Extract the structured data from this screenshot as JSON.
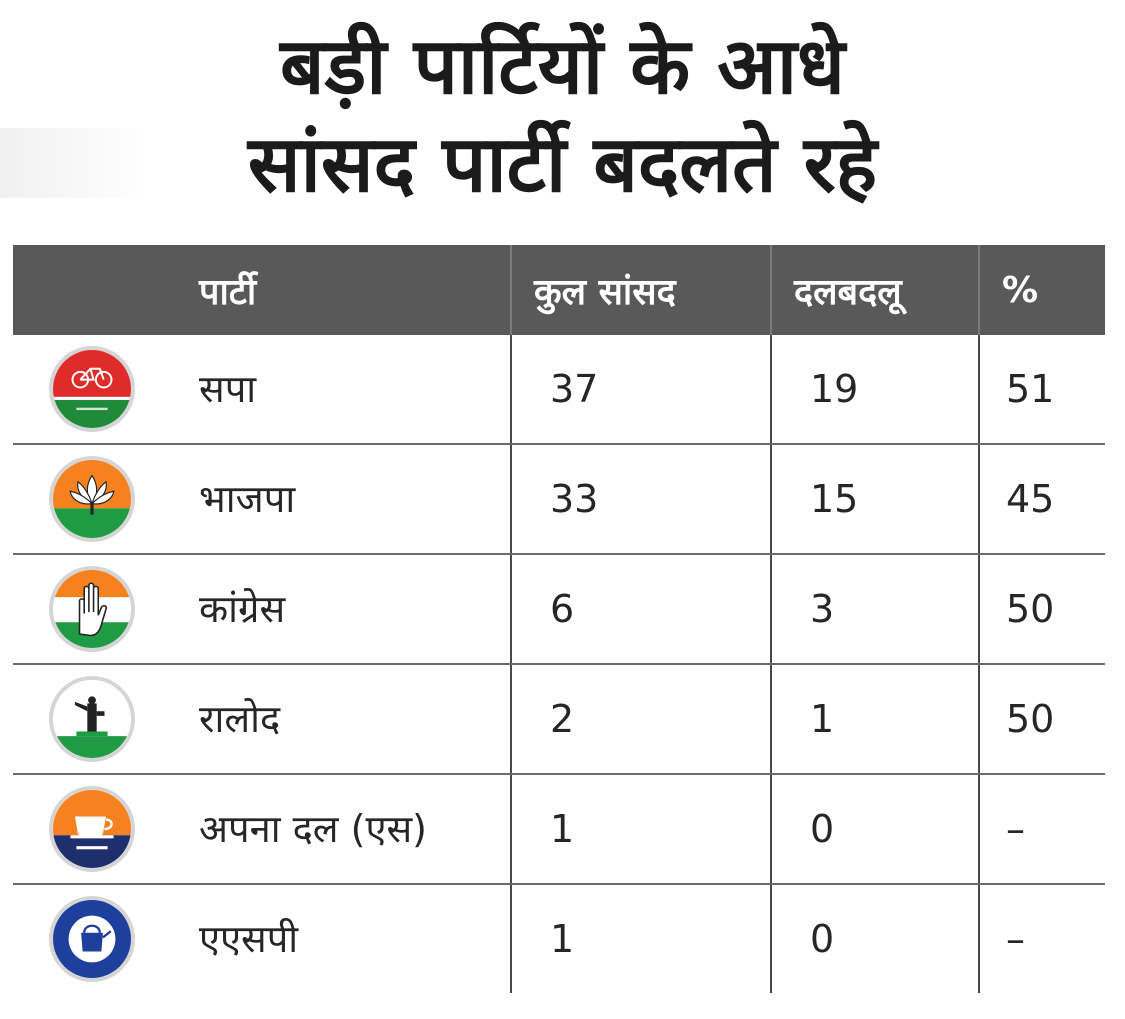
{
  "title": {
    "line1": "बड़ी पार्टियों के आधे",
    "line2": "सांसद पार्टी बदलते रहे"
  },
  "chart_data": {
    "type": "table",
    "headers": [
      "पार्टी",
      "कुल सांसद",
      "दलबदलू",
      "%"
    ],
    "rows": [
      {
        "party": "सपा",
        "total": "37",
        "defectors": "19",
        "percent": "51",
        "logo": "sp-cycle-logo"
      },
      {
        "party": "भाजपा",
        "total": "33",
        "defectors": "15",
        "percent": "45",
        "logo": "bjp-lotus-logo"
      },
      {
        "party": "कांग्रेस",
        "total": "6",
        "defectors": "3",
        "percent": "50",
        "logo": "congress-hand-logo"
      },
      {
        "party": "रालोद",
        "total": "2",
        "defectors": "1",
        "percent": "50",
        "logo": "rld-handpump-logo"
      },
      {
        "party": "अपना दल (एस)",
        "total": "1",
        "defectors": "0",
        "percent": "–",
        "logo": "apna-dal-cup-logo"
      },
      {
        "party": "एएसपी",
        "total": "1",
        "defectors": "0",
        "percent": "–",
        "logo": "asp-kettle-logo"
      }
    ]
  },
  "colors": {
    "header_bg": "#595959",
    "header_text": "#ffffff",
    "sp_red": "#e02b2b",
    "sp_green": "#1f8a3a",
    "saffron": "#f5821f",
    "india_green": "#1f9a45",
    "asp_blue": "#1f3f9c"
  }
}
